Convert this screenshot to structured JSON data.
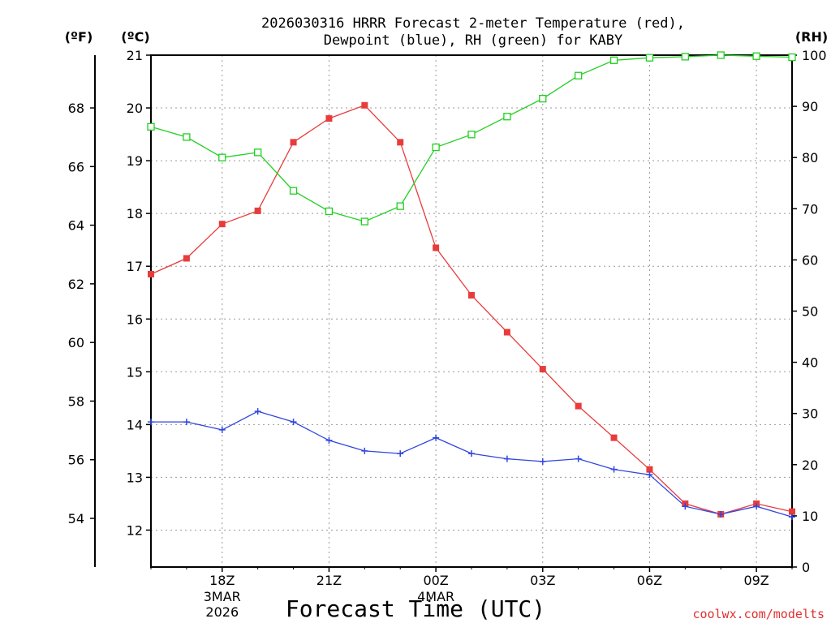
{
  "chart_data": {
    "type": "line",
    "title_line1": "2026030316 HRRR Forecast 2-meter Temperature (red),",
    "title_line2": "Dewpoint (blue), RH (green) for KABY",
    "unit_left_f": "(ºF)",
    "unit_left_c": "(ºC)",
    "unit_right": "(RH)",
    "xlabel": "Forecast Time (UTC)",
    "credit": "coolwx.com/modelts",
    "x_hours": [
      16,
      17,
      18,
      19,
      20,
      21,
      22,
      23,
      24,
      25,
      26,
      27,
      28,
      29,
      30,
      31,
      32,
      33,
      34
    ],
    "x_ticks": [
      {
        "hour": 18,
        "label": "18Z",
        "sub1": "3MAR",
        "sub2": "2026"
      },
      {
        "hour": 21,
        "label": "21Z",
        "sub1": "",
        "sub2": ""
      },
      {
        "hour": 24,
        "label": "00Z",
        "sub1": "4MAR",
        "sub2": ""
      },
      {
        "hour": 27,
        "label": "03Z",
        "sub1": "",
        "sub2": ""
      },
      {
        "hour": 30,
        "label": "06Z",
        "sub1": "",
        "sub2": ""
      },
      {
        "hour": 33,
        "label": "09Z",
        "sub1": "",
        "sub2": ""
      }
    ],
    "xlim": [
      16,
      34
    ],
    "celsius_axis": {
      "ylim": [
        11.3,
        21
      ],
      "ticks": [
        12,
        13,
        14,
        15,
        16,
        17,
        18,
        19,
        20,
        21
      ]
    },
    "fahrenheit_axis": {
      "ticks": [
        54,
        56,
        58,
        60,
        62,
        64,
        66,
        68
      ]
    },
    "rh_axis": {
      "ylim": [
        0,
        100
      ],
      "ticks": [
        0,
        10,
        20,
        30,
        40,
        50,
        60,
        70,
        80,
        90,
        100
      ]
    },
    "series": [
      {
        "name": "Temperature",
        "color": "#e83c3c",
        "marker": "filled-square",
        "axis": "celsius",
        "values": [
          16.85,
          17.15,
          17.8,
          18.05,
          19.35,
          19.8,
          20.05,
          19.35,
          17.35,
          16.45,
          15.75,
          15.05,
          14.35,
          13.75,
          13.15,
          12.5,
          12.3,
          12.5,
          12.35
        ]
      },
      {
        "name": "Dewpoint",
        "color": "#3046e0",
        "marker": "plus",
        "axis": "celsius",
        "values": [
          14.05,
          14.05,
          13.9,
          14.25,
          14.05,
          13.7,
          13.5,
          13.45,
          13.75,
          13.45,
          13.35,
          13.3,
          13.35,
          13.15,
          13.05,
          12.45,
          12.3,
          12.45,
          12.25
        ]
      },
      {
        "name": "RH",
        "color": "#20d020",
        "marker": "open-square",
        "axis": "rh",
        "values": [
          86,
          84,
          80,
          81,
          73.5,
          69.5,
          67.5,
          70.5,
          82,
          84.5,
          88,
          91.5,
          96,
          99,
          99.5,
          99.7,
          100,
          99.8,
          99.6
        ]
      }
    ]
  }
}
